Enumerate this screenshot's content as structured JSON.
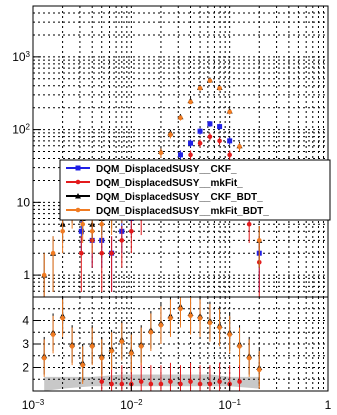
{
  "chart_data": [
    {
      "type": "scatter",
      "panel": "main",
      "scale": {
        "x": "log",
        "y": "log"
      },
      "xlim": [
        0.001,
        1
      ],
      "ylim": [
        0.5,
        5000
      ],
      "grid": true,
      "y_ticks": [
        {
          "value": 1,
          "label": "1"
        },
        {
          "value": 10,
          "label": "10"
        },
        {
          "value": 100,
          "label": "10",
          "exp": "2"
        },
        {
          "value": 1000,
          "label": "10",
          "exp": "3"
        }
      ],
      "legend": {
        "placement": "center-right",
        "entries": [
          {
            "label": "DQM_DisplacedSUSY__CKF_",
            "color": "#1f1fe6",
            "marker": "square"
          },
          {
            "label": "DQM_DisplacedSUSY__mkFit_",
            "color": "#e31a1c",
            "marker": "circle"
          },
          {
            "label": "DQM_DisplacedSUSY__CKF_BDT_",
            "color": "#000000",
            "marker": "triangle"
          },
          {
            "label": "DQM_DisplacedSUSY__mkFit_BDT_",
            "color": "#f07b22",
            "marker": "circle"
          }
        ]
      },
      "series": [
        {
          "name": "DQM_DisplacedSUSY__CKF_",
          "color": "#1f1fe6",
          "x": [
            0.0031,
            0.004,
            0.005,
            0.0063,
            0.008,
            0.01,
            0.0126,
            0.0158,
            0.02,
            0.025,
            0.0316,
            0.04,
            0.05,
            0.063,
            0.079,
            0.1,
            0.126,
            0.158,
            0.2
          ],
          "y": [
            4,
            3,
            3,
            2,
            4,
            6,
            10,
            14,
            20,
            30,
            45,
            65,
            95,
            120,
            110,
            70,
            30,
            8,
            2
          ]
        },
        {
          "name": "DQM_DisplacedSUSY__mkFit_",
          "color": "#e31a1c",
          "x": [
            0.0031,
            0.004,
            0.005,
            0.0063,
            0.008,
            0.01,
            0.0126,
            0.0158,
            0.02,
            0.025,
            0.0316,
            0.04,
            0.05,
            0.063,
            0.079,
            0.1,
            0.126,
            0.158,
            0.2
          ],
          "y": [
            2,
            3,
            2,
            2,
            3,
            4,
            6,
            9,
            13,
            20,
            30,
            45,
            65,
            80,
            70,
            45,
            20,
            5,
            1.5
          ]
        },
        {
          "name": "DQM_DisplacedSUSY__CKF_BDT_",
          "color": "#000000",
          "x": [
            0.0013,
            0.0016,
            0.002,
            0.0025,
            0.0032,
            0.004,
            0.005,
            0.0063,
            0.008,
            0.01,
            0.0126,
            0.0158,
            0.02,
            0.025,
            0.0316,
            0.04,
            0.05,
            0.063,
            0.079,
            0.1,
            0.126,
            0.158,
            0.2
          ],
          "y": [
            1,
            2,
            5,
            8,
            6,
            5,
            6,
            7,
            9,
            12,
            18,
            30,
            50,
            90,
            150,
            250,
            380,
            480,
            380,
            180,
            60,
            12,
            3
          ]
        },
        {
          "name": "DQM_DisplacedSUSY__mkFit_BDT_",
          "color": "#f07b22",
          "x": [
            0.0013,
            0.0016,
            0.002,
            0.0025,
            0.0032,
            0.004,
            0.005,
            0.0063,
            0.008,
            0.01,
            0.0126,
            0.0158,
            0.02,
            0.025,
            0.0316,
            0.04,
            0.05,
            0.063,
            0.079,
            0.1,
            0.126,
            0.158,
            0.2
          ],
          "y": [
            1,
            2,
            4,
            7,
            5,
            4,
            5,
            6,
            8,
            11,
            17,
            28,
            48,
            85,
            145,
            240,
            370,
            470,
            370,
            175,
            58,
            11,
            3
          ]
        }
      ]
    },
    {
      "type": "scatter",
      "panel": "ratio",
      "scale": {
        "x": "log",
        "y": "linear"
      },
      "xlim": [
        0.001,
        1
      ],
      "ylim": [
        1,
        5
      ],
      "grid": true,
      "x_ticks": [
        {
          "value": 0.001,
          "label": "10",
          "exp": "−3"
        },
        {
          "value": 0.01,
          "label": "10",
          "exp": "−2"
        },
        {
          "value": 0.1,
          "label": "10",
          "exp": "−1"
        },
        {
          "value": 1,
          "label": "1"
        }
      ],
      "y_ticks": [
        {
          "value": 2,
          "label": "2"
        },
        {
          "value": 3,
          "label": "3"
        },
        {
          "value": 4,
          "label": "4"
        }
      ],
      "band": {
        "color": "#c8c8c8",
        "x": [
          0.0013,
          0.002,
          0.004,
          0.008,
          0.016,
          0.032,
          0.064,
          0.1,
          0.2
        ],
        "lower": [
          1.0,
          1.1,
          1.2,
          1.2,
          1.2,
          1.2,
          1.2,
          1.2,
          1.1
        ],
        "upper": [
          1.6,
          1.6,
          1.6,
          1.7,
          1.7,
          1.7,
          1.7,
          1.6,
          1.6
        ]
      },
      "series": [
        {
          "name": "DQM_DisplacedSUSY__mkFit_",
          "color": "#e31a1c",
          "x": [
            0.005,
            0.0063,
            0.008,
            0.01,
            0.0126,
            0.0158,
            0.02,
            0.025,
            0.0316,
            0.04,
            0.05,
            0.063,
            0.079,
            0.1,
            0.126
          ],
          "y": [
            1.4,
            1.3,
            1.3,
            1.3,
            1.4,
            1.3,
            1.3,
            1.4,
            1.3,
            1.4,
            1.3,
            1.3,
            1.4,
            1.3,
            1.4
          ]
        },
        {
          "name": "DQM_DisplacedSUSY__CKF_BDT_",
          "color": "#000000",
          "x": [
            0.0013,
            0.0016,
            0.002,
            0.0025,
            0.0032,
            0.004,
            0.005,
            0.0063,
            0.008,
            0.01,
            0.0126,
            0.0158,
            0.02,
            0.025,
            0.0316,
            0.04,
            0.05,
            0.063,
            0.079,
            0.1,
            0.126,
            0.158,
            0.2
          ],
          "y": [
            2.5,
            3.5,
            4.2,
            3.0,
            2.2,
            3.0,
            2.5,
            2.8,
            3.2,
            2.7,
            3.0,
            3.6,
            3.9,
            4.2,
            4.6,
            4.3,
            4.2,
            4.0,
            3.8,
            3.5,
            3.0,
            2.5,
            2.0
          ]
        },
        {
          "name": "DQM_DisplacedSUSY__mkFit_BDT_",
          "color": "#f07b22",
          "x": [
            0.0013,
            0.0016,
            0.002,
            0.0025,
            0.0032,
            0.004,
            0.005,
            0.0063,
            0.008,
            0.01,
            0.0126,
            0.0158,
            0.02,
            0.025,
            0.0316,
            0.04,
            0.05,
            0.063,
            0.079,
            0.1,
            0.126,
            0.158,
            0.2
          ],
          "y": [
            2.4,
            3.4,
            4.1,
            2.9,
            2.1,
            2.9,
            2.4,
            2.7,
            3.1,
            2.6,
            2.9,
            3.5,
            3.8,
            4.1,
            4.5,
            4.2,
            4.1,
            3.9,
            3.7,
            3.4,
            2.9,
            2.4,
            1.9
          ]
        }
      ]
    }
  ]
}
